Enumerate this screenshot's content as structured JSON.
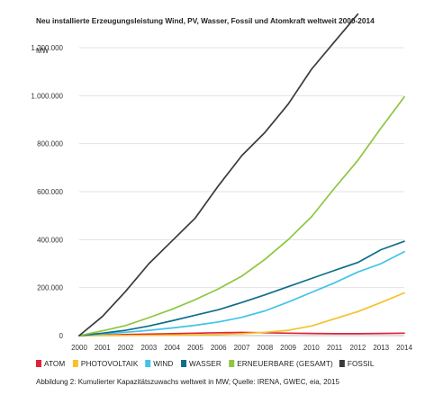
{
  "chart_data": {
    "type": "line",
    "title": "Neu installierte Erzeugungsleistung Wind, PV, Wasser, Fossil und Atomkraft weltweit 2000-2014",
    "unit_label": "MW",
    "caption": "Abbildung 2: Kumulierter Kapazitätszuwachs weltweit in MW; Quelle: IRENA, GWEC, eia, 2015",
    "x": [
      "2000",
      "2001",
      "2002",
      "2003",
      "2004",
      "2005",
      "2006",
      "2007",
      "2008",
      "2009",
      "2010",
      "2011",
      "2012",
      "2013",
      "2014"
    ],
    "y_ticks": [
      0,
      200000,
      400000,
      600000,
      800000,
      1000000,
      1200000
    ],
    "y_tick_labels": [
      "0",
      "200.000",
      "400.000",
      "600.000",
      "800.000",
      "1.000.000",
      "1.200.000"
    ],
    "ylim": [
      0,
      1200000
    ],
    "grid": true,
    "legend_position": "bottom",
    "series": [
      {
        "name": "ATOM",
        "color": "#e0223a",
        "values": [
          0,
          2000,
          4000,
          6000,
          8000,
          10000,
          12000,
          13000,
          12000,
          10000,
          9000,
          8000,
          8000,
          9000,
          10000
        ]
      },
      {
        "name": "PHOTOVOLTAIK",
        "color": "#f6c12b",
        "values": [
          0,
          300,
          700,
          1300,
          2300,
          3800,
          5300,
          8000,
          14000,
          22000,
          40000,
          70000,
          100000,
          138000,
          178000
        ]
      },
      {
        "name": "WIND",
        "color": "#41c4e6",
        "values": [
          0,
          7000,
          14000,
          22000,
          32000,
          43000,
          57000,
          76000,
          103000,
          140000,
          180000,
          220000,
          265000,
          300000,
          350000
        ]
      },
      {
        "name": "WASSER",
        "color": "#0e6e8a",
        "values": [
          0,
          10000,
          22000,
          40000,
          62000,
          85000,
          108000,
          138000,
          170000,
          204000,
          238000,
          272000,
          305000,
          358000,
          393000
        ]
      },
      {
        "name": "ERNEUERBARE (GESAMT)",
        "color": "#8dc63f",
        "values": [
          0,
          20000,
          42000,
          75000,
          110000,
          150000,
          195000,
          248000,
          318000,
          400000,
          495000,
          615000,
          730000,
          865000,
          995000
        ]
      },
      {
        "name": "FOSSIL",
        "color": "#3a3a3a",
        "values": [
          0,
          80000,
          185000,
          300000,
          395000,
          490000,
          625000,
          750000,
          847000,
          965000,
          1110000,
          1225000,
          1340000,
          null,
          null
        ]
      }
    ]
  }
}
